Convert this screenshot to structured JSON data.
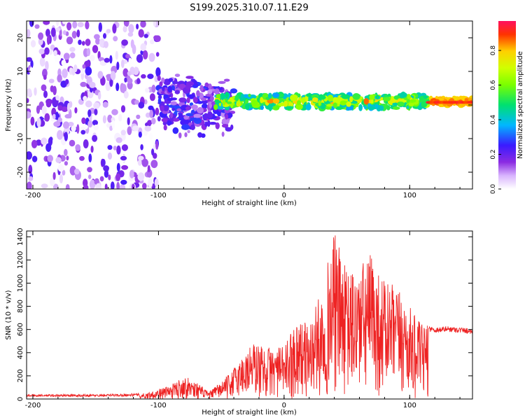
{
  "figure_title": "S199.2025.310.07.11.E29",
  "colors": {
    "axis": "#000000",
    "snr_line": "#ee2222",
    "colormap": [
      "#ffffff",
      "#d8b4fe",
      "#8b2be2",
      "#3a1aff",
      "#00b7ff",
      "#00e070",
      "#c8ff00",
      "#ffd000",
      "#ff3300",
      "#ff1060"
    ]
  },
  "chart_data": [
    {
      "type": "heatmap",
      "title": "",
      "xlabel": "Height of straight line (km)",
      "ylabel": "Frequency (Hz)",
      "xlim": [
        -205,
        150
      ],
      "ylim": [
        -25,
        25
      ],
      "xticks": [
        -200,
        -100,
        0,
        100
      ],
      "yticks": [
        -20,
        -10,
        0,
        10,
        20
      ],
      "colorbar": {
        "label": "Normalized spectral amplitude",
        "range": [
          0,
          0.97
        ],
        "ticks": [
          0.0,
          0.2,
          0.4,
          0.6,
          0.8
        ]
      },
      "description_regions": [
        {
          "x_range": [
            -205,
            -100
          ],
          "amplitude_range": [
            0.0,
            0.25
          ],
          "freq_spread": 25
        },
        {
          "x_range": [
            -100,
            -40
          ],
          "amplitude_range": [
            0.1,
            0.3
          ],
          "freq_spread": 12
        },
        {
          "x_range": [
            -55,
            115
          ],
          "amplitude_range": [
            0.2,
            0.9
          ],
          "freq_spread": 4
        },
        {
          "x_range": [
            115,
            150
          ],
          "amplitude_range": [
            0.8,
            0.95
          ],
          "freq_spread": 1
        }
      ]
    },
    {
      "type": "line",
      "title": "",
      "xlabel": "Height of straight line (km)",
      "ylabel": "SNR (10 * v/v)",
      "xlim": [
        -205,
        150
      ],
      "ylim": [
        0,
        1450
      ],
      "xticks": [
        -200,
        -100,
        0,
        100
      ],
      "yticks": [
        0,
        200,
        400,
        600,
        800,
        1000,
        1200,
        1400
      ],
      "series": [
        {
          "name": "SNR",
          "envelope_x": [
            -205,
            -150,
            -110,
            -90,
            -80,
            -70,
            -60,
            -45,
            -35,
            -25,
            -15,
            -5,
            0,
            10,
            20,
            30,
            35,
            40,
            50,
            60,
            70,
            75,
            85,
            95,
            100,
            105,
            110,
            120,
            130,
            140,
            150
          ],
          "envelope_y": [
            40,
            40,
            50,
            120,
            200,
            150,
            60,
            200,
            350,
            500,
            450,
            450,
            450,
            700,
            650,
            950,
            1200,
            1450,
            1100,
            1150,
            1280,
            1100,
            1000,
            900,
            800,
            700,
            650,
            620,
            630,
            620,
            610
          ]
        }
      ]
    }
  ]
}
